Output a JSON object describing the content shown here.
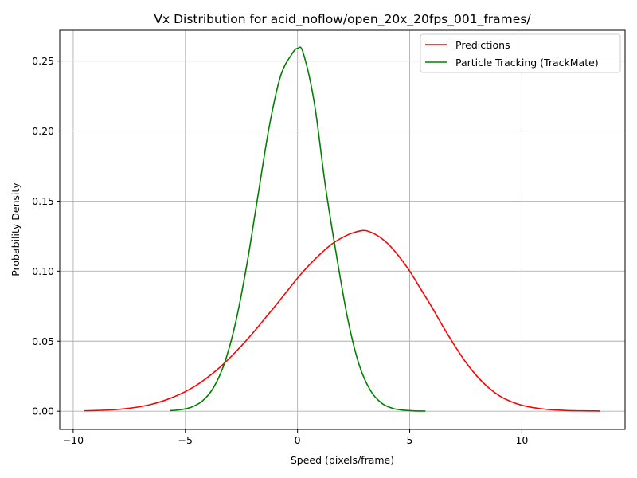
{
  "chart_data": {
    "type": "line",
    "title": "Vx Distribution for acid_noflow/open_20x_20fps_001_frames/",
    "xlabel": "Speed (pixels/frame)",
    "ylabel": "Probability Density",
    "xlim": [
      -10.6,
      14.6
    ],
    "ylim": [
      -0.013,
      0.272
    ],
    "xticks": [
      -10,
      -5,
      0,
      5,
      10
    ],
    "yticks": [
      0.0,
      0.05,
      0.1,
      0.15,
      0.2,
      0.25
    ],
    "xtick_labels": [
      "−10",
      "−5",
      "0",
      "5",
      "10"
    ],
    "ytick_labels": [
      "0.00",
      "0.05",
      "0.10",
      "0.15",
      "0.20",
      "0.25"
    ],
    "grid": true,
    "legend_position": "top-right",
    "series": [
      {
        "name": "Predictions",
        "color": "#ff0000",
        "x": [
          -9.5,
          -9.0,
          -8.5,
          -8.0,
          -7.5,
          -7.0,
          -6.5,
          -6.0,
          -5.5,
          -5.0,
          -4.5,
          -4.0,
          -3.5,
          -3.0,
          -2.5,
          -2.0,
          -1.5,
          -1.0,
          -0.5,
          0.0,
          0.5,
          1.0,
          1.5,
          2.0,
          2.5,
          3.0,
          3.5,
          4.0,
          4.5,
          5.0,
          5.5,
          6.0,
          6.5,
          7.0,
          7.5,
          8.0,
          8.5,
          9.0,
          9.5,
          10.0,
          10.5,
          11.0,
          11.5,
          12.0,
          12.5,
          13.0,
          13.5
        ],
        "y": [
          0.0003,
          0.0005,
          0.0008,
          0.0013,
          0.0021,
          0.0033,
          0.005,
          0.0073,
          0.0103,
          0.014,
          0.0186,
          0.0243,
          0.0308,
          0.0384,
          0.0467,
          0.0557,
          0.0653,
          0.075,
          0.085,
          0.095,
          0.104,
          0.112,
          0.119,
          0.124,
          0.1275,
          0.129,
          0.126,
          0.12,
          0.111,
          0.1,
          0.087,
          0.074,
          0.06,
          0.047,
          0.035,
          0.025,
          0.017,
          0.011,
          0.007,
          0.0043,
          0.0026,
          0.0015,
          0.0009,
          0.0005,
          0.0003,
          0.0002,
          0.0001
        ]
      },
      {
        "name": "Particle Tracking (TrackMate)",
        "color": "#008000",
        "x": [
          -5.7,
          -5.25,
          -4.75,
          -4.25,
          -3.75,
          -3.25,
          -2.75,
          -2.25,
          -1.75,
          -1.25,
          -0.75,
          -0.25,
          0.0,
          0.25,
          0.75,
          1.25,
          1.75,
          2.25,
          2.75,
          3.25,
          3.75,
          4.25,
          4.75,
          5.25,
          5.7
        ],
        "y": [
          0.0004,
          0.001,
          0.0028,
          0.0072,
          0.0167,
          0.0346,
          0.064,
          0.1055,
          0.1553,
          0.2041,
          0.2396,
          0.255,
          0.259,
          0.256,
          0.22,
          0.16,
          0.11,
          0.065,
          0.033,
          0.0148,
          0.0058,
          0.002,
          0.0007,
          0.0002,
          0.0001
        ]
      }
    ]
  }
}
